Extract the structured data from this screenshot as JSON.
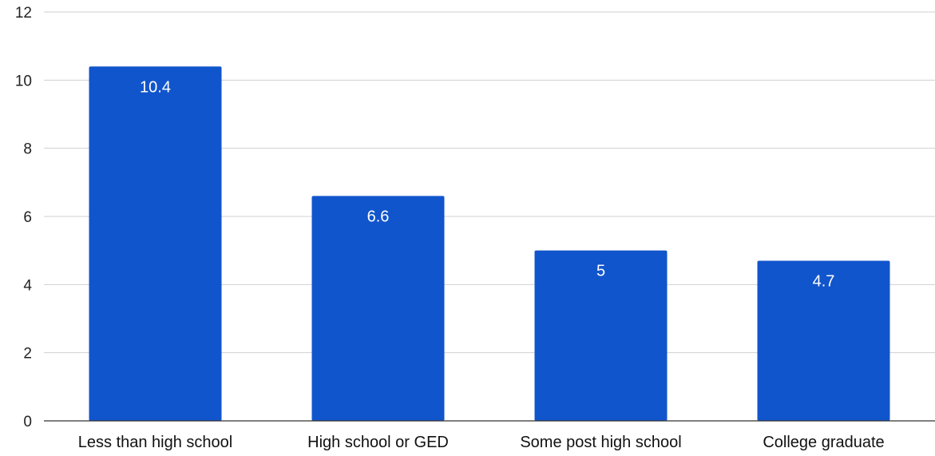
{
  "chart_data": {
    "type": "bar",
    "title": "",
    "xlabel": "",
    "ylabel": "",
    "categories": [
      "Less than high school",
      "High school or GED",
      "Some post high school",
      "College graduate"
    ],
    "series": [
      {
        "values": [
          10.4,
          6.6,
          5,
          4.7
        ],
        "color": "#1155cc"
      }
    ],
    "data_labels": [
      "10.4",
      "6.6",
      "5",
      "4.7"
    ],
    "ylim": [
      0,
      12
    ],
    "yticks": [
      0,
      2,
      4,
      6,
      8,
      10,
      12
    ],
    "grid": true,
    "legend": "none"
  }
}
